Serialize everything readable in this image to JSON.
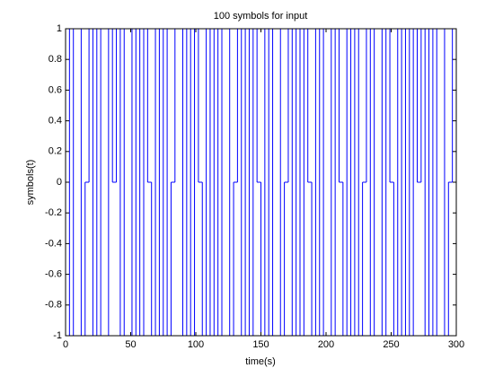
{
  "chart_data": {
    "type": "stairs",
    "title": "100 symbols for input",
    "xlabel": "time(s)",
    "ylabel": "symbols(t)",
    "color": "#0000ff",
    "grid": false,
    "xlim": [
      0,
      300
    ],
    "ylim": [
      -1,
      1
    ],
    "xticks": [
      0,
      50,
      100,
      150,
      200,
      250,
      300
    ],
    "yticks": [
      -1,
      -0.8,
      -0.6,
      -0.4,
      -0.2,
      0,
      0.2,
      0.4,
      0.6,
      0.8,
      1
    ],
    "x": [
      0,
      3,
      6,
      9,
      12,
      15,
      18,
      21,
      24,
      27,
      30,
      33,
      36,
      39,
      42,
      45,
      48,
      51,
      54,
      57,
      60,
      63,
      66,
      69,
      72,
      75,
      78,
      81,
      84,
      87,
      90,
      93,
      96,
      99,
      102,
      105,
      108,
      111,
      114,
      117,
      120,
      123,
      126,
      129,
      132,
      135,
      138,
      141,
      144,
      147,
      150,
      153,
      156,
      159,
      162,
      165,
      168,
      171,
      174,
      177,
      180,
      183,
      186,
      189,
      192,
      195,
      198,
      201,
      204,
      207,
      210,
      213,
      216,
      219,
      222,
      225,
      228,
      231,
      234,
      237,
      240,
      243,
      246,
      249,
      252,
      255,
      258,
      261,
      264,
      267,
      270,
      273,
      276,
      279,
      282,
      285,
      288,
      291,
      294,
      297
    ],
    "values": [
      1,
      -1,
      1,
      1,
      -1,
      0,
      1,
      -1,
      1,
      -1,
      -1,
      1,
      0,
      1,
      -1,
      1,
      1,
      -1,
      1,
      -1,
      1,
      0,
      -1,
      1,
      -1,
      1,
      -1,
      0,
      1,
      1,
      -1,
      1,
      -1,
      1,
      0,
      -1,
      1,
      -1,
      1,
      -1,
      1,
      1,
      -1,
      0,
      1,
      -1,
      1,
      -1,
      1,
      0,
      -1,
      1,
      -1,
      1,
      1,
      -1,
      0,
      1,
      -1,
      1,
      -1,
      1,
      0,
      -1,
      1,
      -1,
      1,
      1,
      -1,
      1,
      0,
      -1,
      1,
      -1,
      1,
      -1,
      0,
      1,
      -1,
      1,
      1,
      -1,
      1,
      0,
      -1,
      1,
      -1,
      1,
      -1,
      1,
      0,
      1,
      -1,
      1,
      -1,
      1,
      1,
      -1,
      0,
      1
    ]
  }
}
